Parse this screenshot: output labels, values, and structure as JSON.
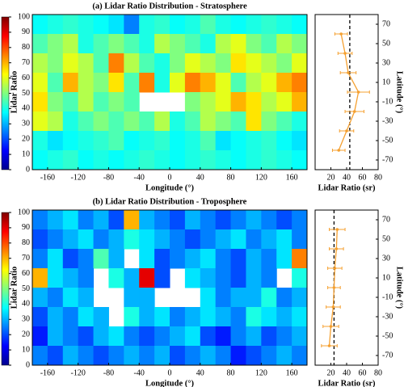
{
  "chart_data": [
    {
      "type": "heatmap",
      "title": "(a) Lidar Ratio Distribution - Stratosphere",
      "xlabel": "Longitude (°)",
      "ylabel": "Lidar Ratio",
      "colormap": "jet",
      "x": [
        -170,
        -150,
        -130,
        -110,
        -90,
        -70,
        -50,
        -30,
        -10,
        10,
        30,
        50,
        70,
        90,
        110,
        130,
        150,
        170
      ],
      "y": [
        70,
        50,
        30,
        10,
        -10,
        -30,
        -50,
        -70
      ],
      "z": [
        [
          38,
          40,
          42,
          40,
          38,
          35,
          25,
          40,
          42,
          38,
          40,
          45,
          40,
          38,
          40,
          42,
          40,
          38
        ],
        [
          45,
          50,
          55,
          40,
          45,
          50,
          45,
          40,
          55,
          50,
          45,
          40,
          55,
          60,
          50,
          45,
          55,
          50
        ],
        [
          55,
          50,
          60,
          55,
          45,
          75,
          55,
          45,
          40,
          50,
          60,
          55,
          50,
          65,
          60,
          55,
          50,
          60
        ],
        [
          60,
          45,
          70,
          55,
          50,
          65,
          45,
          75,
          40,
          60,
          75,
          70,
          60,
          45,
          55,
          60,
          70,
          75
        ],
        [
          65,
          50,
          45,
          55,
          45,
          50,
          45,
          null,
          null,
          null,
          50,
          55,
          60,
          70,
          65,
          55,
          60,
          70
        ],
        [
          60,
          55,
          40,
          45,
          50,
          45,
          50,
          45,
          55,
          40,
          45,
          55,
          50,
          45,
          65,
          50,
          45,
          40
        ],
        [
          40,
          35,
          38,
          40,
          42,
          45,
          38,
          40,
          42,
          38,
          40,
          45,
          35,
          38,
          40,
          42,
          38,
          35
        ],
        [
          38,
          40,
          42,
          38,
          40,
          38,
          40,
          42,
          40,
          38,
          40,
          42,
          40,
          38,
          40,
          42,
          40,
          38
        ]
      ],
      "xlim": [
        -180,
        180
      ],
      "ylim": [
        -80,
        80
      ],
      "xticks": [
        -160,
        -120,
        -80,
        -40,
        0,
        40,
        80,
        120,
        160
      ],
      "clim": [
        0,
        100
      ],
      "cticks": [
        0,
        10,
        20,
        30,
        40,
        50,
        60,
        70,
        80,
        90,
        100
      ]
    },
    {
      "type": "line",
      "xlabel": "Lidar Ratio (sr)",
      "ylabel": "Latitude (°)",
      "color": "#f5a030",
      "y": [
        60,
        40,
        20,
        0,
        -20,
        -40,
        -60
      ],
      "values": [
        33,
        38,
        42,
        55,
        50,
        40,
        30
      ],
      "errors": [
        8,
        9,
        10,
        14,
        12,
        9,
        8
      ],
      "reference": 44,
      "xlim": [
        0,
        80
      ],
      "ylim": [
        -80,
        80
      ],
      "xticks": [
        20,
        40,
        60,
        80
      ],
      "yticks": [
        -70,
        -50,
        -30,
        -10,
        10,
        30,
        50,
        70
      ]
    },
    {
      "type": "heatmap",
      "title": "(b) Lidar Ratio Distribution - Troposphere",
      "xlabel": "Longitude (°)",
      "ylabel": "Lidar Ratio",
      "colormap": "jet",
      "x": [
        -170,
        -150,
        -130,
        -110,
        -90,
        -70,
        -50,
        -30,
        -10,
        10,
        30,
        50,
        70,
        90,
        110,
        130,
        150,
        170
      ],
      "y": [
        70,
        50,
        30,
        10,
        -10,
        -30,
        -50,
        -70
      ],
      "z": [
        [
          25,
          30,
          35,
          25,
          30,
          20,
          70,
          30,
          25,
          20,
          30,
          25,
          20,
          25,
          30,
          25,
          20,
          25
        ],
        [
          20,
          25,
          30,
          35,
          25,
          30,
          40,
          35,
          30,
          25,
          20,
          25,
          30,
          35,
          25,
          30,
          35,
          25
        ],
        [
          25,
          35,
          20,
          25,
          45,
          30,
          null,
          35,
          20,
          25,
          30,
          35,
          25,
          20,
          30,
          25,
          35,
          75
        ],
        [
          70,
          35,
          30,
          25,
          null,
          40,
          30,
          90,
          20,
          null,
          35,
          30,
          25,
          20,
          30,
          25,
          null,
          40
        ],
        [
          30,
          25,
          35,
          30,
          null,
          null,
          30,
          30,
          null,
          null,
          null,
          35,
          25,
          30,
          30,
          40,
          25,
          30
        ],
        [
          20,
          30,
          25,
          35,
          30,
          null,
          40,
          30,
          35,
          25,
          30,
          35,
          30,
          25,
          40,
          35,
          30,
          35
        ],
        [
          15,
          30,
          25,
          20,
          30,
          35,
          25,
          20,
          25,
          30,
          35,
          20,
          15,
          25,
          30,
          20,
          25,
          30
        ],
        [
          25,
          20,
          30,
          25,
          20,
          25,
          30,
          25,
          30,
          20,
          25,
          30,
          25,
          15,
          20,
          25,
          30,
          25
        ]
      ],
      "xlim": [
        -180,
        180
      ],
      "ylim": [
        -80,
        80
      ],
      "xticks": [
        -160,
        -120,
        -80,
        -40,
        0,
        40,
        80,
        120,
        160
      ],
      "clim": [
        0,
        100
      ],
      "cticks": [
        0,
        10,
        20,
        30,
        40,
        50,
        60,
        70,
        80,
        90,
        100
      ]
    },
    {
      "type": "line",
      "xlabel": "Lidar Ratio (sr)",
      "ylabel": "Latitude (°)",
      "color": "#f5a030",
      "y": [
        60,
        40,
        20,
        0,
        -20,
        -40,
        -60
      ],
      "values": [
        28,
        27,
        25,
        24,
        23,
        20,
        18
      ],
      "errors": [
        10,
        9,
        9,
        8,
        9,
        10,
        10
      ],
      "reference": 24,
      "xlim": [
        0,
        80
      ],
      "ylim": [
        -80,
        80
      ],
      "xticks": [
        20,
        40,
        60,
        80
      ],
      "yticks": [
        -70,
        -50,
        -30,
        -10,
        10,
        30,
        50,
        70
      ]
    }
  ]
}
